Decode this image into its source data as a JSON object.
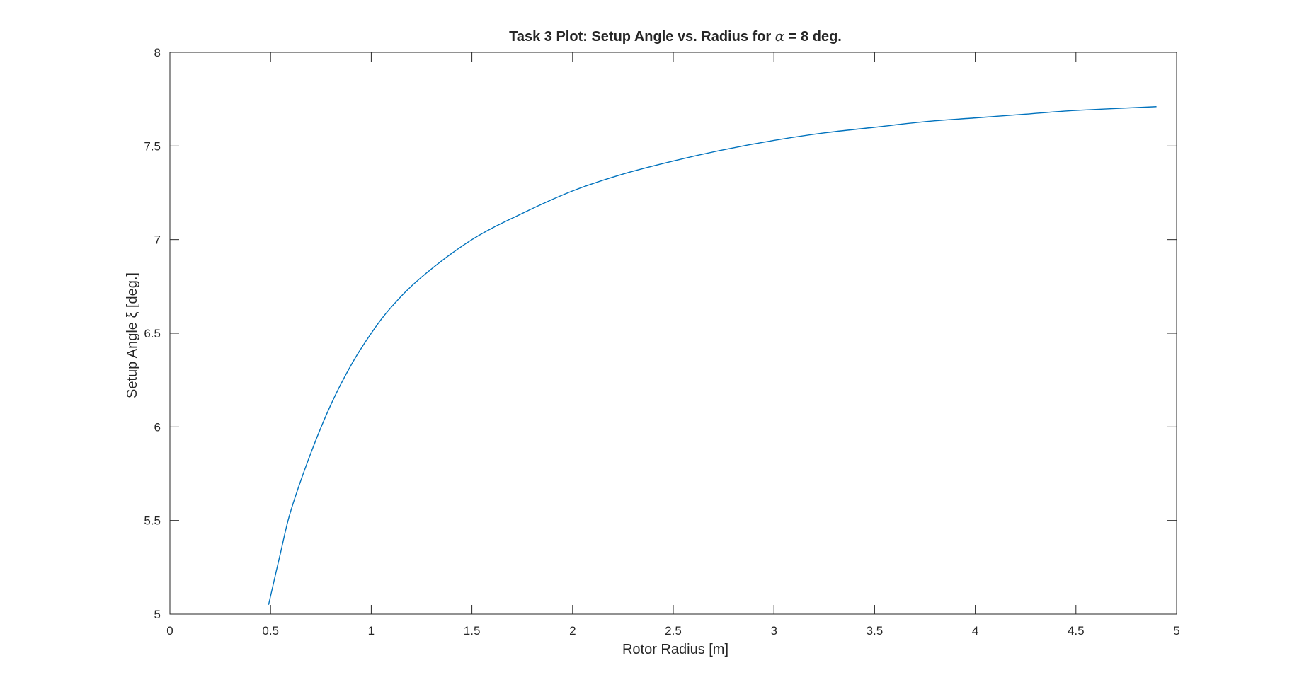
{
  "chart_data": {
    "type": "line",
    "title": {
      "before": "Task 3 Plot: Setup Angle vs. Radius for ",
      "symbol": "α",
      "after": " = 8 deg."
    },
    "xlabel": "Rotor Radius [m]",
    "ylabel": "Setup Angle ξ [deg.]",
    "xlim": [
      0,
      5
    ],
    "ylim": [
      5,
      8
    ],
    "xticks": [
      "0",
      "0.5",
      "1",
      "1.5",
      "2",
      "2.5",
      "3",
      "3.5",
      "4",
      "4.5",
      "5"
    ],
    "yticks": [
      "5",
      "5.5",
      "6",
      "6.5",
      "7",
      "7.5",
      "8"
    ],
    "grid": false,
    "box": true,
    "series": [
      {
        "color": "#0072BD",
        "x": [
          0.49,
          0.55,
          0.6,
          0.7,
          0.8,
          0.9,
          1.0,
          1.1,
          1.25,
          1.5,
          1.75,
          2.0,
          2.25,
          2.5,
          2.75,
          3.0,
          3.25,
          3.5,
          3.75,
          4.0,
          4.25,
          4.5,
          4.9
        ],
        "y": [
          5.05,
          5.33,
          5.55,
          5.86,
          6.12,
          6.33,
          6.5,
          6.64,
          6.8,
          7.0,
          7.14,
          7.26,
          7.35,
          7.42,
          7.48,
          7.53,
          7.57,
          7.6,
          7.63,
          7.65,
          7.67,
          7.69,
          7.71
        ]
      }
    ]
  }
}
